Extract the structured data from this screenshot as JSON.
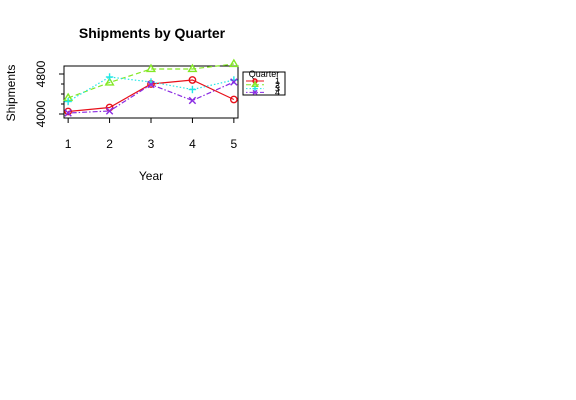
{
  "chart_data": {
    "type": "line",
    "title": "Shipments  by  Quarter",
    "xlabel": "Year",
    "ylabel": "Shipments",
    "x": [
      1,
      2,
      3,
      4,
      5
    ],
    "x_ticks": [
      "1",
      "2",
      "3",
      "4",
      "5"
    ],
    "y_ticks": [
      "4000",
      "4800"
    ],
    "xlim": [
      0.9,
      5.1
    ],
    "ylim": [
      3920,
      4960
    ],
    "legend": {
      "title": "Quarter",
      "placement": "right"
    },
    "grid": false,
    "series": [
      {
        "name": "1",
        "color": "#E8101A",
        "marker": "circle",
        "dash": "solid",
        "values": [
          4050,
          4130,
          4600,
          4680,
          4290
        ]
      },
      {
        "name": "2",
        "color": "#83E825",
        "marker": "triangle",
        "dash": "dashed",
        "values": [
          4320,
          4630,
          4900,
          4900,
          5000
        ]
      },
      {
        "name": "3",
        "color": "#22E6E6",
        "marker": "plus",
        "dash": "dotted",
        "values": [
          4250,
          4740,
          4640,
          4490,
          4680
        ]
      },
      {
        "name": "4",
        "color": "#8A2BE2",
        "marker": "cross",
        "dash": "dotdash",
        "values": [
          4020,
          4060,
          4590,
          4270,
          4640
        ]
      }
    ]
  }
}
